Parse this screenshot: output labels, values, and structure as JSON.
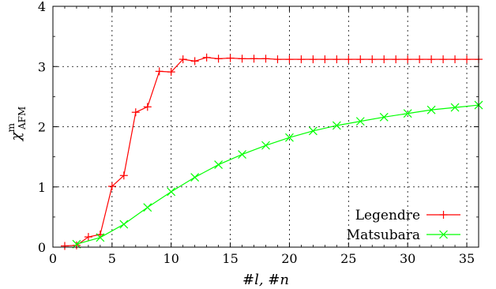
{
  "chart_data": {
    "type": "line",
    "xlabel": "#l, #n",
    "ylabel": {
      "base": "χ",
      "sup": "m",
      "sub": "AFM"
    },
    "xlim": [
      0,
      36
    ],
    "ylim": [
      0,
      4
    ],
    "x_ticks": [
      0,
      5,
      10,
      15,
      20,
      25,
      30,
      35
    ],
    "y_ticks": [
      0,
      1,
      2,
      3,
      4
    ],
    "grid": true,
    "legend_position": "bottom-right",
    "series": [
      {
        "name": "Legendre",
        "color": "#ff0000",
        "marker": "plus",
        "x": [
          1,
          2,
          3,
          4,
          5,
          6,
          7,
          8,
          9,
          10,
          11,
          12,
          13,
          14,
          15,
          16,
          17,
          18,
          19,
          20,
          21,
          22,
          23,
          24,
          25,
          26,
          27,
          28,
          29,
          30,
          31,
          32,
          33,
          34,
          35,
          36
        ],
        "y": [
          0.02,
          0.03,
          0.17,
          0.21,
          1.01,
          1.19,
          2.24,
          2.33,
          2.92,
          2.91,
          3.12,
          3.09,
          3.15,
          3.13,
          3.14,
          3.13,
          3.13,
          3.13,
          3.12,
          3.12,
          3.12,
          3.12,
          3.12,
          3.12,
          3.12,
          3.12,
          3.12,
          3.12,
          3.12,
          3.12,
          3.12,
          3.12,
          3.12,
          3.12,
          3.12,
          3.12
        ]
      },
      {
        "name": "Matsubara",
        "color": "#00ff00",
        "marker": "x",
        "x": [
          2,
          4,
          6,
          8,
          10,
          12,
          14,
          16,
          18,
          20,
          22,
          24,
          26,
          28,
          30,
          32,
          34,
          36
        ],
        "y": [
          0.05,
          0.16,
          0.38,
          0.66,
          0.92,
          1.16,
          1.37,
          1.54,
          1.69,
          1.82,
          1.93,
          2.02,
          2.09,
          2.16,
          2.22,
          2.28,
          2.32,
          2.36
        ]
      }
    ]
  }
}
